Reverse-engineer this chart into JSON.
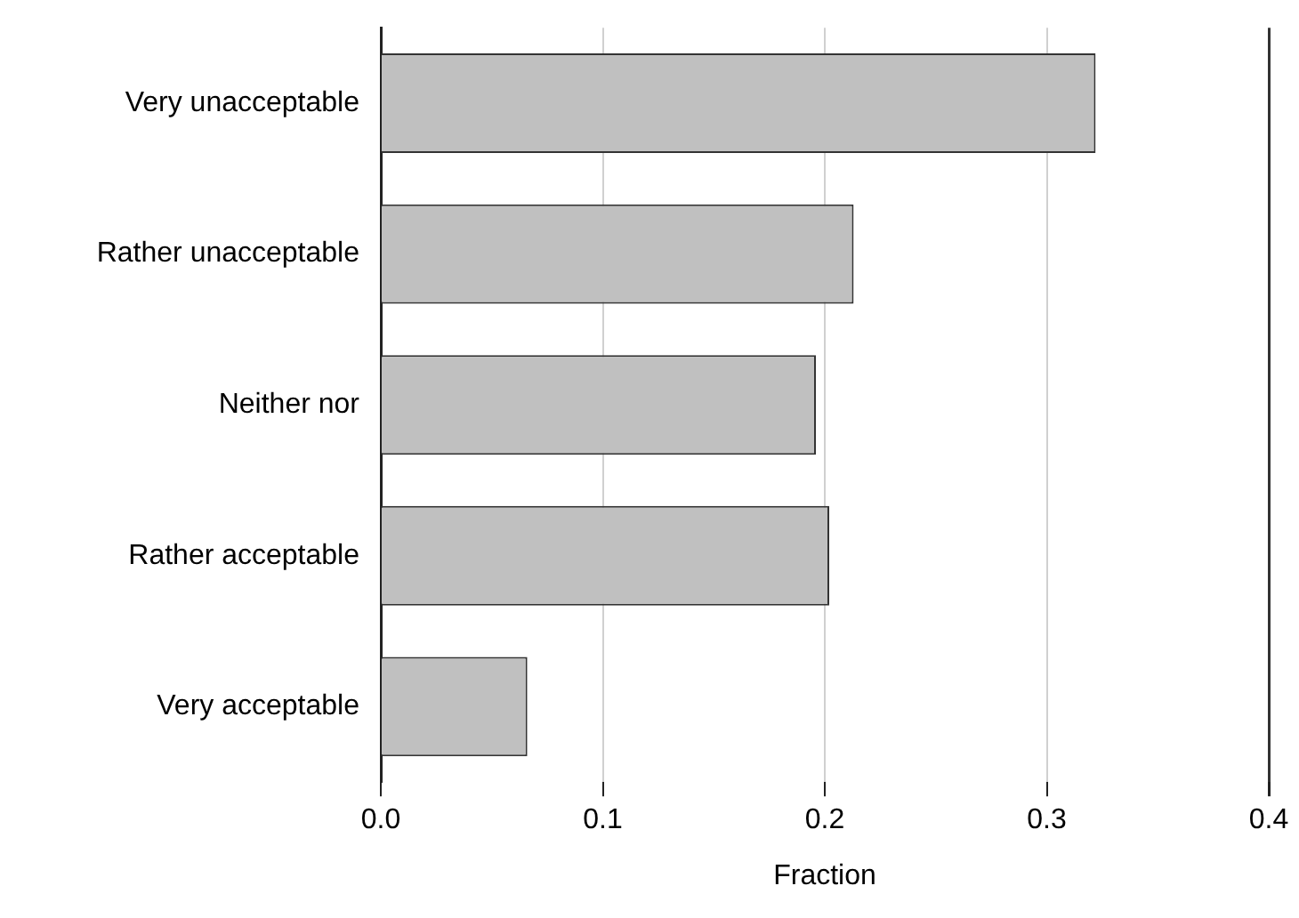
{
  "chart_data": {
    "type": "bar",
    "orientation": "horizontal",
    "xlabel": "Fraction",
    "categories": [
      "Very unacceptable",
      "Rather unacceptable",
      "Neither nor",
      "Rather acceptable",
      "Very acceptable"
    ],
    "values": [
      0.322,
      0.213,
      0.196,
      0.202,
      0.066
    ],
    "color": "#c0c0c0",
    "xlim": [
      0,
      0.4
    ],
    "xticks": [
      {
        "value": 0,
        "label": "0.0"
      },
      0.1,
      0.2,
      0.3,
      0.4
    ],
    "grid": "x"
  }
}
